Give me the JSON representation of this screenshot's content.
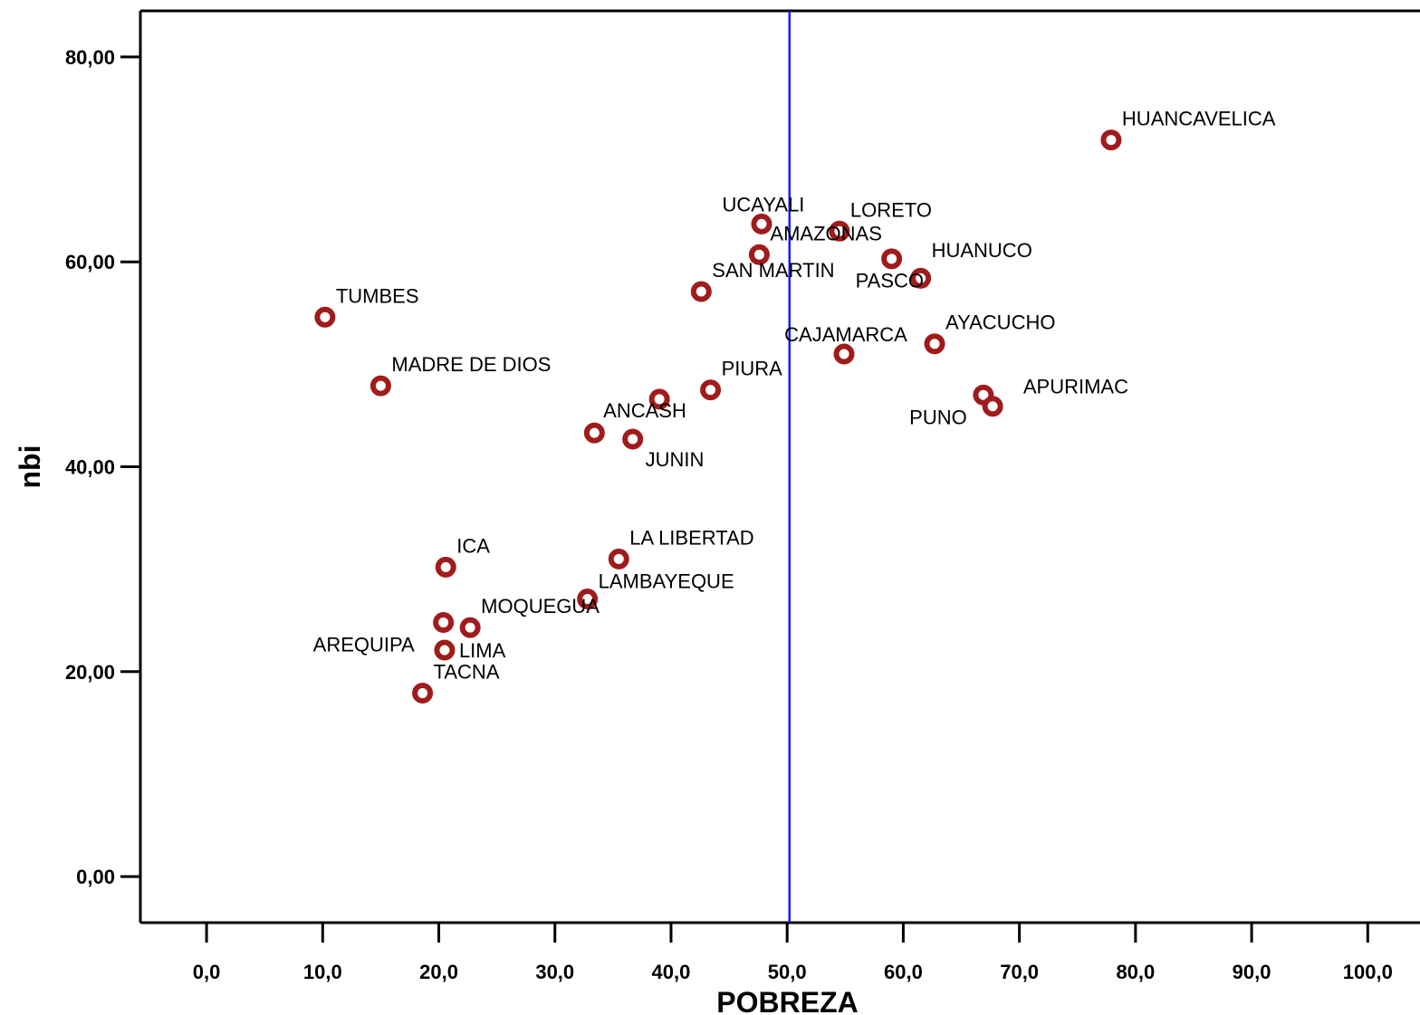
{
  "chart_data": {
    "type": "scatter",
    "xlabel": "POBREZA",
    "ylabel": "nbi",
    "xlim": [
      -5.7,
      104.5
    ],
    "ylim": [
      -4.5,
      84.5
    ],
    "xticks": [
      {
        "value": 0,
        "label": "0,0"
      },
      {
        "value": 10,
        "label": "10,0"
      },
      {
        "value": 20,
        "label": "20,0"
      },
      {
        "value": 30,
        "label": "30,0"
      },
      {
        "value": 40,
        "label": "40,0"
      },
      {
        "value": 50,
        "label": "50,0"
      },
      {
        "value": 60,
        "label": "60,0"
      },
      {
        "value": 70,
        "label": "70,0"
      },
      {
        "value": 80,
        "label": "80,0"
      },
      {
        "value": 90,
        "label": "90,0"
      },
      {
        "value": 100,
        "label": "100,0"
      }
    ],
    "yticks": [
      {
        "value": 0,
        "label": "0,00"
      },
      {
        "value": 20,
        "label": "20,00"
      },
      {
        "value": 40,
        "label": "40,00"
      },
      {
        "value": 60,
        "label": "60,00"
      },
      {
        "value": 80,
        "label": "80,00"
      }
    ],
    "reference_line": {
      "axis": "x",
      "value": 50.2,
      "color": "#1a1aff"
    },
    "marker_color": "#a01c1c",
    "grid": false,
    "points": [
      {
        "name": "HUANCAVELICA",
        "x": 77.9,
        "y": 71.9,
        "anchor": "ne"
      },
      {
        "name": "UCAYALI",
        "x": 47.8,
        "y": 63.7,
        "anchor": "n"
      },
      {
        "name": "LORETO",
        "x": 54.5,
        "y": 63.0,
        "anchor": "ne"
      },
      {
        "name": "AMAZONAS",
        "x": 47.6,
        "y": 60.7,
        "anchor": "ne"
      },
      {
        "name": "HUANUCO",
        "x": 59.0,
        "y": 60.3,
        "anchor": "ne-far"
      },
      {
        "name": "PASCO",
        "x": 61.5,
        "y": 58.4,
        "anchor": "w"
      },
      {
        "name": "SAN MARTIN",
        "x": 42.6,
        "y": 57.1,
        "anchor": "ne"
      },
      {
        "name": "TUMBES",
        "x": 10.2,
        "y": 54.6,
        "anchor": "ne"
      },
      {
        "name": "AYACUCHO",
        "x": 62.7,
        "y": 52.0,
        "anchor": "ne"
      },
      {
        "name": "CAJAMARCA",
        "x": 54.9,
        "y": 51.0,
        "anchor": "n"
      },
      {
        "name": "MADRE DE DIOS",
        "x": 15.0,
        "y": 47.9,
        "anchor": "ne"
      },
      {
        "name": "PIURA",
        "x": 43.4,
        "y": 47.5,
        "anchor": "ne"
      },
      {
        "name": "APURIMAC",
        "x": 66.9,
        "y": 47.0,
        "anchor": "ne-far"
      },
      {
        "name": "PUNO",
        "x": 67.7,
        "y": 45.9,
        "anchor": "sw"
      },
      {
        "name": "ANCASH",
        "x": 39.0,
        "y": 46.6,
        "anchor": "s-left"
      },
      {
        "name": "JUNIN",
        "x": 36.7,
        "y": 42.7,
        "anchor": "se"
      },
      {
        "name": "",
        "x": 33.4,
        "y": 43.3,
        "anchor": "none"
      },
      {
        "name": "LA LIBERTAD",
        "x": 35.5,
        "y": 31.0,
        "anchor": "ne"
      },
      {
        "name": "ICA",
        "x": 20.6,
        "y": 30.2,
        "anchor": "ne"
      },
      {
        "name": "LAMBAYEQUE",
        "x": 32.8,
        "y": 27.1,
        "anchor": "n-right"
      },
      {
        "name": "MOQUEGUA",
        "x": 22.7,
        "y": 24.3,
        "anchor": "ne"
      },
      {
        "name": "AREQUIPA",
        "x": 20.4,
        "y": 24.8,
        "anchor": "sw-low"
      },
      {
        "name": "LIMA",
        "x": 20.5,
        "y": 22.1,
        "anchor": "e"
      },
      {
        "name": "TACNA",
        "x": 18.6,
        "y": 17.9,
        "anchor": "ne"
      }
    ]
  }
}
